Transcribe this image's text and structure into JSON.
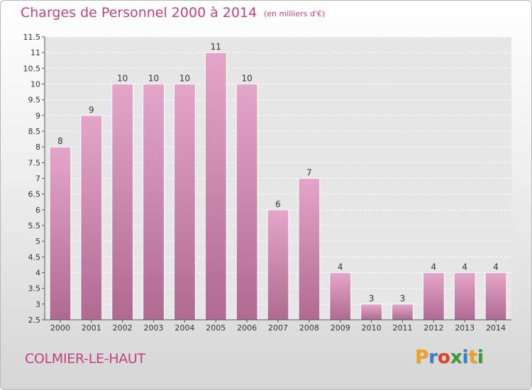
{
  "title": "Charges de Personnel 2000 à 2014",
  "subtitle": "(en milliers d'€)",
  "commune": "COLMIER-LE-HAUT",
  "logo": {
    "letters": [
      "P",
      "r",
      "o",
      "x",
      "i",
      "t",
      "i"
    ],
    "colors": [
      "#f0a020",
      "#3a7fd0",
      "#e0402a",
      "#3a9a3a",
      "#3a7fd0",
      "#f0a020",
      "#3a9a3a"
    ]
  },
  "colors": {
    "bar": "#d98fb8",
    "text": "#c0427e"
  },
  "chart_data": {
    "type": "bar",
    "title": "Charges de Personnel 2000 à 2014",
    "subtitle": "(en milliers d'€)",
    "categories": [
      "2000",
      "2001",
      "2002",
      "2003",
      "2004",
      "2005",
      "2006",
      "2007",
      "2008",
      "2009",
      "2010",
      "2011",
      "2012",
      "2013",
      "2014"
    ],
    "values": [
      8,
      9,
      10,
      10,
      10,
      11,
      10,
      6,
      7,
      4,
      3,
      3,
      4,
      4,
      4
    ],
    "data_labels": [
      "8",
      "9",
      "10",
      "10",
      "10",
      "11",
      "10",
      "6",
      "7",
      "4",
      "3",
      "3",
      "4",
      "4",
      "4"
    ],
    "ylim": [
      2.5,
      11.5
    ],
    "yticks": [
      2.5,
      3,
      3.5,
      4,
      4.5,
      5,
      5.5,
      6,
      6.5,
      7,
      7.5,
      8,
      8.5,
      9,
      9.5,
      10,
      10.5,
      11,
      11.5
    ],
    "ytick_labels": [
      "2.5",
      "3",
      "3.5",
      "4",
      "4.5",
      "5",
      "5.5",
      "6",
      "6.5",
      "7",
      "7.5",
      "8",
      "8.5",
      "9",
      "9.5",
      "10",
      "10.5",
      "11",
      "11.5"
    ],
    "xlabel": "",
    "ylabel": "",
    "grid": true,
    "legend": "none"
  }
}
